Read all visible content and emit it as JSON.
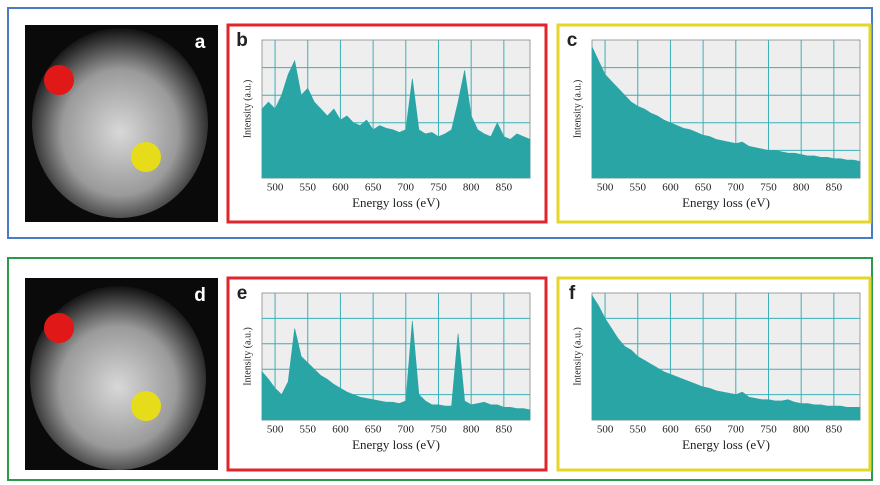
{
  "images": [
    {
      "label": "a"
    },
    {
      "label": "d"
    }
  ],
  "chart_data": [
    {
      "type": "area",
      "label": "b",
      "frame_color": "#e0262b",
      "color": "#2aa5a5",
      "x_label": "Energy loss (eV)",
      "y_label": "Intensity (a.u.)",
      "x": [
        480,
        490,
        500,
        510,
        520,
        530,
        540,
        550,
        560,
        570,
        580,
        590,
        600,
        610,
        620,
        630,
        640,
        650,
        660,
        670,
        680,
        690,
        700,
        710,
        720,
        730,
        740,
        750,
        760,
        770,
        780,
        790,
        800,
        810,
        820,
        830,
        840,
        850,
        860,
        870,
        880,
        890
      ],
      "values": [
        0.5,
        0.55,
        0.5,
        0.6,
        0.75,
        0.85,
        0.6,
        0.65,
        0.55,
        0.5,
        0.45,
        0.5,
        0.42,
        0.45,
        0.4,
        0.38,
        0.42,
        0.35,
        0.38,
        0.36,
        0.35,
        0.33,
        0.35,
        0.72,
        0.35,
        0.32,
        0.33,
        0.3,
        0.32,
        0.35,
        0.55,
        0.78,
        0.45,
        0.35,
        0.32,
        0.3,
        0.4,
        0.3,
        0.28,
        0.32,
        0.3,
        0.28
      ],
      "xlim": [
        480,
        890
      ],
      "xticks": [
        500,
        550,
        600,
        650,
        700,
        750,
        800,
        850
      ],
      "ylim": [
        0,
        1
      ],
      "yticks": [
        0.2,
        0.4,
        0.6,
        0.8
      ],
      "grid": true
    },
    {
      "type": "area",
      "label": "c",
      "frame_color": "#e6d62a",
      "color": "#2aa5a5",
      "x_label": "Energy loss (eV)",
      "y_label": "Intensity (a.u.)",
      "x": [
        480,
        490,
        500,
        510,
        520,
        530,
        540,
        550,
        560,
        570,
        580,
        590,
        600,
        610,
        620,
        630,
        640,
        650,
        660,
        670,
        680,
        690,
        700,
        710,
        720,
        730,
        740,
        750,
        760,
        770,
        780,
        790,
        800,
        810,
        820,
        830,
        840,
        850,
        860,
        870,
        880,
        890
      ],
      "values": [
        0.95,
        0.85,
        0.75,
        0.7,
        0.65,
        0.6,
        0.55,
        0.52,
        0.5,
        0.47,
        0.45,
        0.42,
        0.4,
        0.38,
        0.36,
        0.35,
        0.33,
        0.31,
        0.3,
        0.28,
        0.27,
        0.26,
        0.25,
        0.26,
        0.23,
        0.22,
        0.21,
        0.2,
        0.2,
        0.19,
        0.18,
        0.18,
        0.17,
        0.16,
        0.16,
        0.15,
        0.15,
        0.14,
        0.14,
        0.13,
        0.13,
        0.12
      ],
      "xlim": [
        480,
        890
      ],
      "xticks": [
        500,
        550,
        600,
        650,
        700,
        750,
        800,
        850
      ],
      "ylim": [
        0,
        1
      ],
      "yticks": [
        0.2,
        0.4,
        0.6,
        0.8
      ],
      "grid": true
    },
    {
      "type": "area",
      "label": "e",
      "frame_color": "#e0262b",
      "color": "#2aa5a5",
      "x_label": "Energy loss (eV)",
      "y_label": "Intensity (a.u.)",
      "x": [
        480,
        490,
        500,
        510,
        520,
        530,
        540,
        550,
        560,
        570,
        580,
        590,
        600,
        610,
        620,
        630,
        640,
        650,
        660,
        670,
        680,
        690,
        700,
        710,
        720,
        730,
        740,
        750,
        760,
        770,
        780,
        790,
        800,
        810,
        820,
        830,
        840,
        850,
        860,
        870,
        880,
        890
      ],
      "values": [
        0.38,
        0.32,
        0.25,
        0.2,
        0.3,
        0.72,
        0.5,
        0.45,
        0.4,
        0.35,
        0.32,
        0.28,
        0.25,
        0.22,
        0.2,
        0.18,
        0.17,
        0.16,
        0.15,
        0.14,
        0.14,
        0.13,
        0.15,
        0.78,
        0.2,
        0.15,
        0.12,
        0.12,
        0.11,
        0.11,
        0.68,
        0.15,
        0.12,
        0.13,
        0.14,
        0.12,
        0.12,
        0.1,
        0.1,
        0.09,
        0.09,
        0.08
      ],
      "xlim": [
        480,
        890
      ],
      "xticks": [
        500,
        550,
        600,
        650,
        700,
        750,
        800,
        850
      ],
      "ylim": [
        0,
        1
      ],
      "yticks": [
        0.2,
        0.4,
        0.6,
        0.8
      ],
      "grid": true
    },
    {
      "type": "area",
      "label": "f",
      "frame_color": "#e6d62a",
      "color": "#2aa5a5",
      "x_label": "Energy loss (eV)",
      "y_label": "Intensity (a.u.)",
      "x": [
        480,
        490,
        500,
        510,
        520,
        530,
        540,
        550,
        560,
        570,
        580,
        590,
        600,
        610,
        620,
        630,
        640,
        650,
        660,
        670,
        680,
        690,
        700,
        710,
        720,
        730,
        740,
        750,
        760,
        770,
        780,
        790,
        800,
        810,
        820,
        830,
        840,
        850,
        860,
        870,
        880,
        890
      ],
      "values": [
        0.98,
        0.9,
        0.8,
        0.72,
        0.64,
        0.58,
        0.55,
        0.5,
        0.47,
        0.44,
        0.41,
        0.38,
        0.36,
        0.34,
        0.32,
        0.3,
        0.28,
        0.26,
        0.25,
        0.23,
        0.22,
        0.21,
        0.2,
        0.22,
        0.18,
        0.17,
        0.16,
        0.16,
        0.15,
        0.15,
        0.16,
        0.14,
        0.13,
        0.13,
        0.12,
        0.12,
        0.11,
        0.11,
        0.11,
        0.1,
        0.1,
        0.1
      ],
      "xlim": [
        480,
        890
      ],
      "xticks": [
        500,
        550,
        600,
        650,
        700,
        750,
        800,
        850
      ],
      "ylim": [
        0,
        1
      ],
      "yticks": [
        0.2,
        0.4,
        0.6,
        0.8
      ],
      "grid": true
    }
  ]
}
